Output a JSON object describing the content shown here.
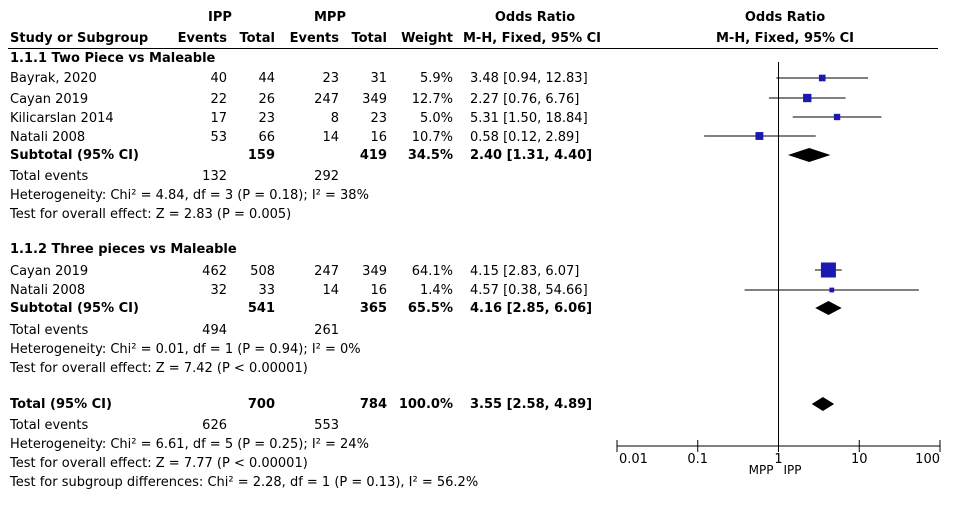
{
  "header": {
    "group1": "IPP",
    "group2": "MPP",
    "effect_title": "Odds Ratio",
    "plot_title": "Odds Ratio",
    "col_study": "Study or Subgroup",
    "col_events1": "Events",
    "col_total1": "Total",
    "col_events2": "Events",
    "col_total2": "Total",
    "col_weight": "Weight",
    "col_method": "M-H, Fixed, 95% CI",
    "plot_method": "M-H, Fixed, 95% CI"
  },
  "subgroups": [
    {
      "title": "1.1.1 Two Piece vs Maleable",
      "studies": [
        {
          "name": "Bayrak, 2020",
          "e1": "40",
          "t1": "44",
          "e2": "23",
          "t2": "31",
          "weight": "5.9%",
          "ci": "3.48 [0.94, 12.83]"
        },
        {
          "name": "Cayan 2019",
          "e1": "22",
          "t1": "26",
          "e2": "247",
          "t2": "349",
          "weight": "12.7%",
          "ci": "2.27 [0.76, 6.76]"
        },
        {
          "name": "Kilicarslan 2014",
          "e1": "17",
          "t1": "23",
          "e2": "8",
          "t2": "23",
          "weight": "5.0%",
          "ci": "5.31 [1.50, 18.84]"
        },
        {
          "name": "Natali 2008",
          "e1": "53",
          "t1": "66",
          "e2": "14",
          "t2": "16",
          "weight": "10.7%",
          "ci": "0.58 [0.12, 2.89]"
        }
      ],
      "subtotal": {
        "label": "Subtotal (95% CI)",
        "t1": "159",
        "t2": "419",
        "weight": "34.5%",
        "ci": "2.40 [1.31, 4.40]"
      },
      "total_events": {
        "label": "Total events",
        "e1": "132",
        "e2": "292"
      },
      "heterogeneity": "Heterogeneity: Chi² = 4.84, df = 3 (P = 0.18); I² = 38%",
      "overall": "Test for overall effect: Z = 2.83 (P = 0.005)"
    },
    {
      "title": "1.1.2 Three pieces vs Maleable",
      "studies": [
        {
          "name": "Cayan 2019",
          "e1": "462",
          "t1": "508",
          "e2": "247",
          "t2": "349",
          "weight": "64.1%",
          "ci": "4.15 [2.83, 6.07]"
        },
        {
          "name": "Natali 2008",
          "e1": "32",
          "t1": "33",
          "e2": "14",
          "t2": "16",
          "weight": "1.4%",
          "ci": "4.57 [0.38, 54.66]"
        }
      ],
      "subtotal": {
        "label": "Subtotal (95% CI)",
        "t1": "541",
        "t2": "365",
        "weight": "65.5%",
        "ci": "4.16 [2.85, 6.06]"
      },
      "total_events": {
        "label": "Total events",
        "e1": "494",
        "e2": "261"
      },
      "heterogeneity": "Heterogeneity: Chi² = 0.01, df = 1 (P = 0.94); I² = 0%",
      "overall": "Test for overall effect: Z = 7.42 (P < 0.00001)"
    }
  ],
  "total": {
    "label": "Total (95% CI)",
    "t1": "700",
    "t2": "784",
    "weight": "100.0%",
    "ci": "3.55 [2.58, 4.89]",
    "events_label": "Total events",
    "e1": "626",
    "e2": "553",
    "heterogeneity": "Heterogeneity: Chi² = 6.61, df = 5 (P = 0.25); I² = 24%",
    "overall": "Test for overall effect: Z = 7.77 (P < 0.00001)",
    "subgroup_diff": "Test for subgroup differences: Chi² = 2.28, df = 1 (P = 0.13), I² = 56.2%"
  },
  "colors": {
    "marker": "#1a1ab0",
    "diamond": "#000000",
    "line": "#000000"
  },
  "chart_data": {
    "type": "forest",
    "title": "Odds Ratio",
    "xlabel_left": "MPP",
    "xlabel_right": "IPP",
    "xscale": "log",
    "xlim": [
      0.01,
      100
    ],
    "ticks": [
      0.01,
      0.1,
      1,
      10,
      100
    ],
    "tick_labels": [
      "0.01",
      "0.1",
      "1",
      "10",
      "100"
    ],
    "rows": [
      {
        "label": "Bayrak, 2020",
        "kind": "study",
        "or": 3.48,
        "lo": 0.94,
        "hi": 12.83,
        "weight": 5.9
      },
      {
        "label": "Cayan 2019",
        "kind": "study",
        "or": 2.27,
        "lo": 0.76,
        "hi": 6.76,
        "weight": 12.7
      },
      {
        "label": "Kilicarslan 2014",
        "kind": "study",
        "or": 5.31,
        "lo": 1.5,
        "hi": 18.84,
        "weight": 5.0
      },
      {
        "label": "Natali 2008",
        "kind": "study",
        "or": 0.58,
        "lo": 0.12,
        "hi": 2.89,
        "weight": 10.7
      },
      {
        "label": "Subtotal 1.1.1",
        "kind": "diamond",
        "or": 2.4,
        "lo": 1.31,
        "hi": 4.4
      },
      {
        "label": "Cayan 2019",
        "kind": "study",
        "or": 4.15,
        "lo": 2.83,
        "hi": 6.07,
        "weight": 64.1
      },
      {
        "label": "Natali 2008",
        "kind": "study",
        "or": 4.57,
        "lo": 0.38,
        "hi": 54.66,
        "weight": 1.4
      },
      {
        "label": "Subtotal 1.1.2",
        "kind": "diamond",
        "or": 4.16,
        "lo": 2.85,
        "hi": 6.06
      },
      {
        "label": "Total",
        "kind": "diamond",
        "or": 3.55,
        "lo": 2.58,
        "hi": 4.89
      }
    ]
  }
}
